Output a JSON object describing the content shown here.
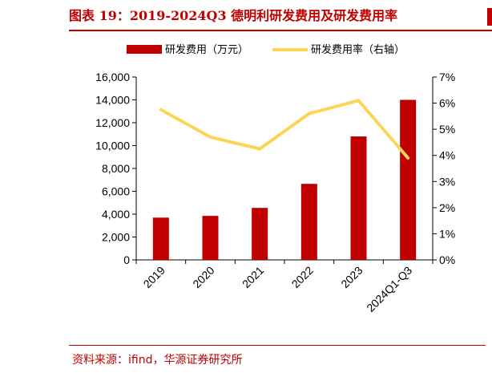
{
  "header": {
    "title": "图表 19：2019-2024Q3 德明利研发费用及研发费用率"
  },
  "footer": {
    "source": "资料来源：ifind，华源证券研究所"
  },
  "colors": {
    "bar": "#c00000",
    "line": "#fcd556",
    "accent": "#c00000"
  },
  "chart_data": {
    "type": "bar",
    "categories": [
      "2019",
      "2020",
      "2021",
      "2022",
      "2023",
      "2024Q1-Q3"
    ],
    "series": [
      {
        "name": "研发费用（万元）",
        "type": "bar",
        "axis": "left",
        "values": [
          3700,
          3850,
          4550,
          6650,
          10800,
          14000
        ]
      },
      {
        "name": "研发费用率（右轴）",
        "type": "line",
        "axis": "right",
        "values": [
          5.75,
          4.7,
          4.25,
          5.6,
          6.1,
          3.9
        ]
      }
    ],
    "y_left": {
      "ylim": [
        0,
        16000
      ],
      "ticks": [
        "0",
        "2,000",
        "4,000",
        "6,000",
        "8,000",
        "10,000",
        "12,000",
        "14,000",
        "16,000"
      ]
    },
    "y_right": {
      "ylim": [
        0,
        7
      ],
      "ticks": [
        "0%",
        "1%",
        "2%",
        "3%",
        "4%",
        "5%",
        "6%",
        "7%"
      ]
    },
    "grid": false,
    "legend": "top"
  }
}
